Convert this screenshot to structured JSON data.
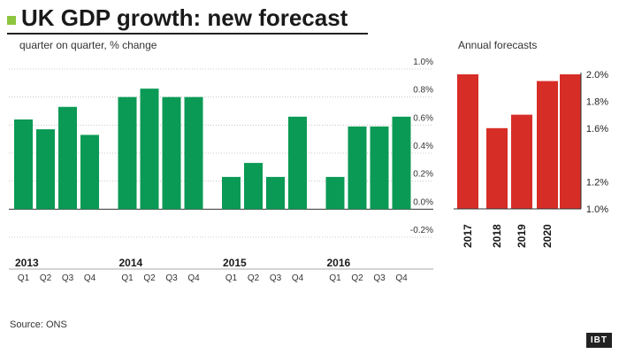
{
  "title": "UK GDP growth: new forecast",
  "subtitle": "quarter on quarter, % change",
  "annual_title": "Annual forecasts",
  "source": "Source: ONS",
  "logo": "IBT",
  "colors": {
    "quarterly": "#0a9a55",
    "annual": "#d72d27",
    "accent": "#8dc63f"
  },
  "chart_data": [
    {
      "type": "bar",
      "title": "UK GDP growth: new forecast",
      "subtitle": "quarter on quarter, % change",
      "groups": [
        "2013",
        "2014",
        "2015",
        "2016"
      ],
      "quarters": [
        "Q1",
        "Q2",
        "Q3",
        "Q4"
      ],
      "series": [
        {
          "group": "2013",
          "values": [
            0.64,
            0.57,
            0.73,
            0.53
          ]
        },
        {
          "group": "2014",
          "values": [
            0.8,
            0.86,
            0.8,
            0.8
          ]
        },
        {
          "group": "2015",
          "values": [
            0.23,
            0.33,
            0.23,
            0.66
          ]
        },
        {
          "group": "2016",
          "values": [
            0.23,
            0.59,
            0.59,
            0.66
          ]
        }
      ],
      "yticks": [
        -0.2,
        0,
        0.2,
        0.4,
        0.6,
        0.8,
        1.0
      ],
      "ytick_labels": [
        "-0.2%",
        "0.0%",
        "0.2%",
        "0.4%",
        "0.6%",
        "0.8%",
        "1.0%"
      ],
      "ylim": [
        -0.2,
        1.0
      ],
      "grid": true
    },
    {
      "type": "bar",
      "title": "Annual forecasts",
      "categories": [
        "2017",
        "2018",
        "2019",
        "2020"
      ],
      "values": [
        2.0,
        1.6,
        1.7,
        1.95
      ],
      "extra_bar_value": 2.0,
      "yticks": [
        1.0,
        1.2,
        1.4,
        1.6,
        1.8,
        2.0
      ],
      "ytick_labels": [
        "1.0%",
        "1.2%",
        "1.6%",
        "1.8%",
        "2.0%"
      ],
      "ytick_label_values": [
        1.0,
        1.2,
        1.6,
        1.8,
        2.0
      ],
      "ylim": [
        1.0,
        2.0
      ]
    }
  ]
}
